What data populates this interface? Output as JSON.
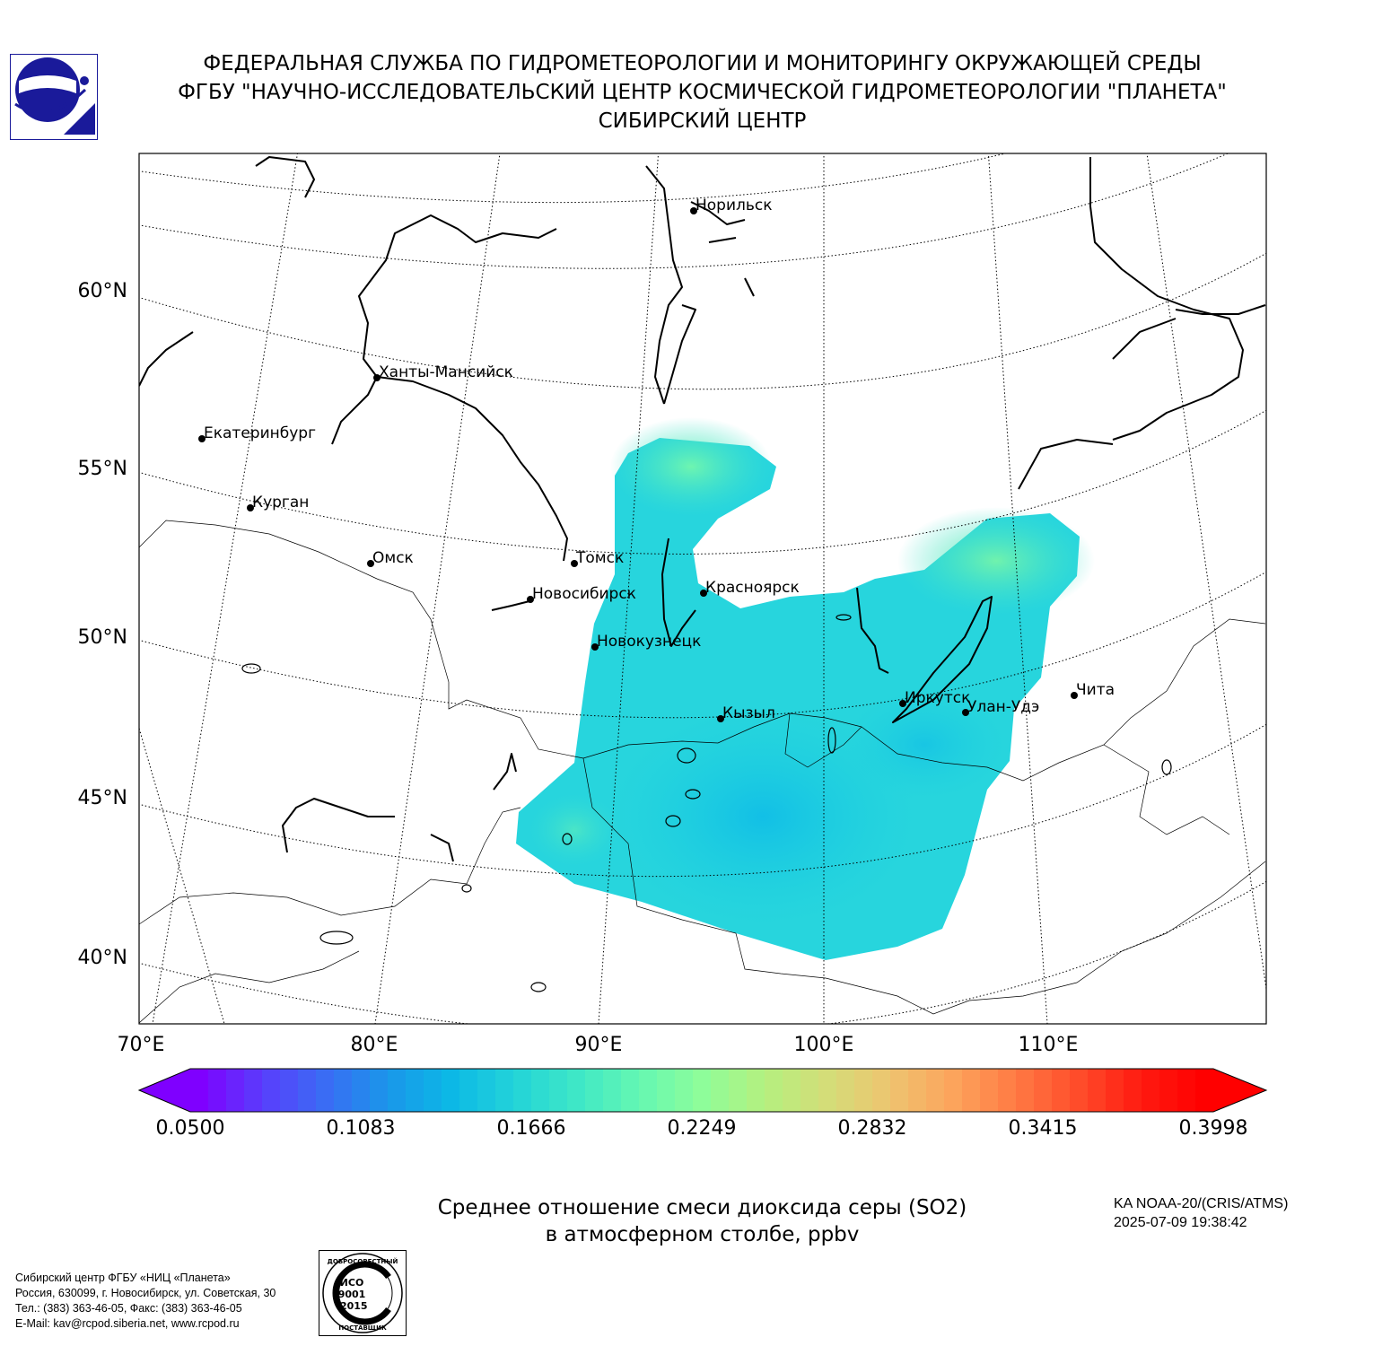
{
  "header": {
    "line1": "ФЕДЕРАЛЬНАЯ СЛУЖБА ПО ГИДРОМЕТЕОРОЛОГИИ И МОНИТОРИНГУ ОКРУЖАЮЩЕЙ СРЕДЫ",
    "line2": "ФГБУ \"НАУЧНО-ИССЛЕДОВАТЕЛЬСКИЙ ЦЕНТР КОСМИЧЕСКОЙ ГИДРОМЕТЕОРОЛОГИИ \"ПЛАНЕТА\"",
    "line3": "СИБИРСКИЙ ЦЕНТР"
  },
  "map": {
    "lat_labels": [
      "60°N",
      "55°N",
      "50°N",
      "45°N",
      "40°N"
    ],
    "lon_labels": [
      "70°E",
      "80°E",
      "90°E",
      "100°E",
      "110°E"
    ],
    "cities": [
      {
        "name": "Норильск"
      },
      {
        "name": "Ханты-Мансийск"
      },
      {
        "name": "Екатеринбург"
      },
      {
        "name": "Курган"
      },
      {
        "name": "Омск"
      },
      {
        "name": "Томск"
      },
      {
        "name": "Новосибирск"
      },
      {
        "name": "Красноярск"
      },
      {
        "name": "Новокузнецк"
      },
      {
        "name": "Кызыл"
      },
      {
        "name": "Иркутск"
      },
      {
        "name": "Улан-Удэ"
      },
      {
        "name": "Чита"
      }
    ]
  },
  "colorbar": {
    "ticks": [
      "0.0500",
      "0.1083",
      "0.1666",
      "0.2249",
      "0.2832",
      "0.3415",
      "0.3998"
    ],
    "colors": [
      "#7f00ff",
      "#5a3dfc",
      "#3a6cf4",
      "#1a96ea",
      "#0cb8e6",
      "#22d3d9",
      "#3ee7c7",
      "#64f7b2",
      "#8efd9a",
      "#b4f07f",
      "#d4dd78",
      "#eec470",
      "#fca45c",
      "#ff7a44",
      "#ff4c2a",
      "#ff1a10",
      "#ff0000"
    ]
  },
  "caption": {
    "line1": "Среднее отношение смеси диоксида серы (SO2)",
    "line2": "в атмосферном столбе, ppbv"
  },
  "satellite": {
    "line1": "KA NOAA-20/(CRIS/ATMS)",
    "line2": "2025-07-09 19:38:42"
  },
  "org": {
    "line1": "Сибирский центр ФГБУ «НИЦ «Планета»",
    "line2": "Россия, 630099, г. Новосибирск, ул. Советская, 30",
    "line3": "Тел.: (383) 363-46-05, Факс: (383) 363-46-05",
    "line4": "E-Mail: kav@rcpod.siberia.net, www.rcpod.ru"
  },
  "iso_badge": {
    "top": "ДОБРОСОВЕСТНЫЙ",
    "iso": "ИСО",
    "num": "9001",
    "year": "-2015",
    "bottom": "ПОСТАВЩИК"
  }
}
